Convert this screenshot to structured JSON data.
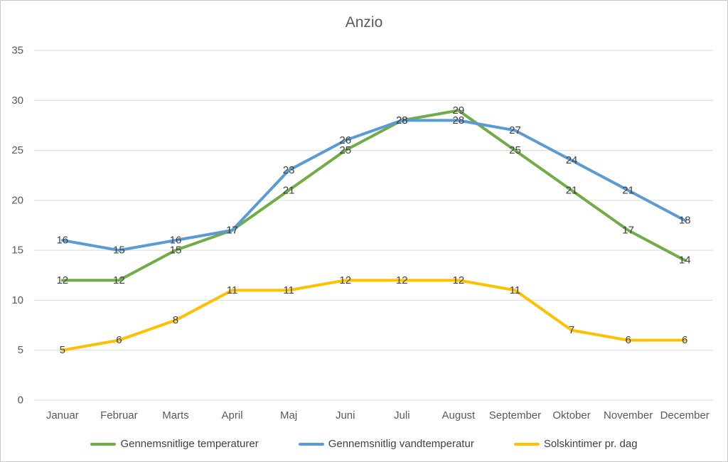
{
  "chart_data": {
    "type": "line",
    "title": "Anzio",
    "categories": [
      "Januar",
      "Februar",
      "Marts",
      "April",
      "Maj",
      "Juni",
      "Juli",
      "August",
      "September",
      "Oktober",
      "November",
      "December"
    ],
    "series": [
      {
        "name": "Gennemsnitlige temperaturer",
        "color": "#70AD47",
        "values": [
          12,
          12,
          15,
          17,
          21,
          25,
          28,
          29,
          25,
          21,
          17,
          14
        ]
      },
      {
        "name": "Gennemsnitlig vandtemperatur",
        "color": "#5B9BD5",
        "values": [
          16,
          15,
          16,
          17,
          23,
          26,
          28,
          28,
          27,
          24,
          21,
          18
        ]
      },
      {
        "name": "Solskintimer pr. dag",
        "color": "#FFC000",
        "values": [
          5,
          6,
          8,
          11,
          11,
          12,
          12,
          12,
          11,
          7,
          6,
          6
        ]
      }
    ],
    "ylim": [
      0,
      35
    ],
    "ytick_step": 5,
    "grid": true,
    "data_labels": true,
    "legend_position": "bottom",
    "xlabel": "",
    "ylabel": ""
  },
  "colors": {
    "grid": "#D9D9D9",
    "axis_text": "#595959",
    "data_label_text": "#404040",
    "title_text": "#595959",
    "border": "#C9C9C9",
    "background": "#FFFFFF"
  }
}
